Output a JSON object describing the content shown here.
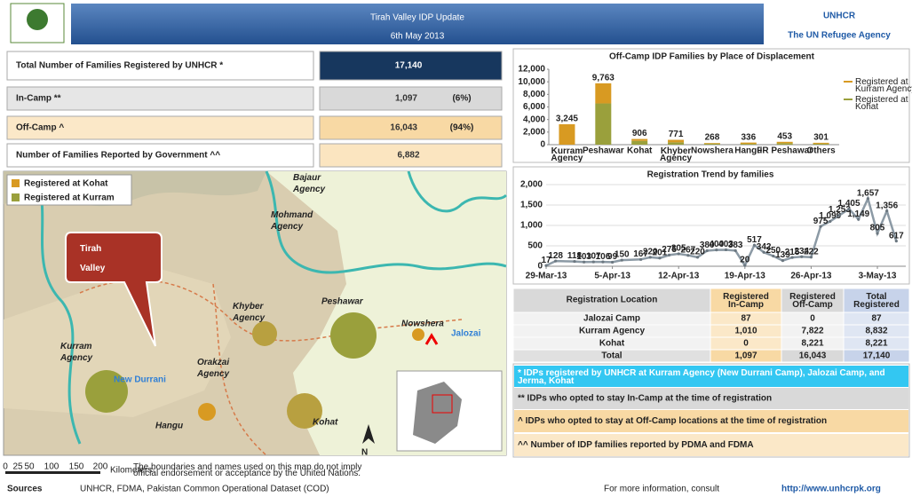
{
  "header": {
    "title": "Tirah Valley IDP Update",
    "date": "6th May 2013",
    "logo": "UNHCR",
    "logo_sub": "The UN Refugee Agency"
  },
  "stats": [
    {
      "label": "Total Number of Families Registered by UNHCR *",
      "value": "17,140"
    },
    {
      "label": "In-Camp **",
      "value": "1,097",
      "share": "(6%)"
    },
    {
      "label": "Off-Camp ^",
      "value": "16,043",
      "share": "(94%)"
    },
    {
      "label": "Number of Families Reported by Government ^^",
      "value": "6,882"
    }
  ],
  "map": {
    "legend": [
      "Registered at Kohat",
      "Registered at Kurram"
    ],
    "callout": "Tirah Valley",
    "labels": [
      "Bajaur Agency",
      "Mohmand Agency",
      "Khyber Agency",
      "Peshawar",
      "Nowshera",
      "Jalozai",
      "Kurram Agency",
      "Orakzai Agency",
      "New Durrani",
      "Hangu",
      "Kohat",
      "N"
    ]
  },
  "chart_data": [
    {
      "type": "bar",
      "title": "Off-Camp IDP Families by Place of Displacement",
      "categories": [
        "Kurram Agency",
        "Peshawar",
        "Kohat",
        "Khyber Agency",
        "Nowshera",
        "Hangu",
        "FR Peshawar",
        "Others"
      ],
      "series": [
        {
          "name": "Registered at Kohat",
          "color": "#9aa03c",
          "values": [
            0,
            6560,
            606,
            371,
            168,
            136,
            229,
            151
          ]
        },
        {
          "name": "Registered at Kurram Agency",
          "color": "#d89a22",
          "values": [
            3245,
            3203,
            300,
            400,
            100,
            200,
            224,
            150
          ]
        }
      ],
      "total_labels": [
        "3,245",
        "9,763",
        "906",
        "771",
        "268",
        "336",
        "453",
        "301"
      ],
      "stacked": true,
      "ylim": [
        0,
        12000
      ],
      "yticks": [
        0,
        {
          "value": 2000,
          "label": "2,000"
        },
        {
          "value": 4000,
          "label": "4,000"
        },
        {
          "value": 6000,
          "label": "6,000"
        },
        {
          "value": 8000,
          "label": "8,000"
        },
        {
          "value": 10000,
          "label": "10,000"
        },
        {
          "value": 12000,
          "label": "12,000"
        }
      ],
      "legend": "right"
    },
    {
      "type": "line",
      "title": "Registration Trend by families",
      "x": [
        "2013-03-29",
        "2013-03-30",
        "2013-04-01",
        "2013-04-02",
        "2013-04-03",
        "2013-04-04",
        "2013-04-05",
        "2013-04-06",
        "2013-04-08",
        "2013-04-09",
        "2013-04-10",
        "2013-04-11",
        "2013-04-12",
        "2013-04-13",
        "2013-04-14",
        "2013-04-15",
        "2013-04-16",
        "2013-04-17",
        "2013-04-18",
        "2013-04-19",
        "2013-04-20",
        "2013-04-21",
        "2013-04-22",
        "2013-04-23",
        "2013-04-24",
        "2013-04-25",
        "2013-04-26",
        "2013-04-27",
        "2013-04-28",
        "2013-04-29",
        "2013-04-30",
        "2013-05-01",
        "2013-05-02",
        "2013-05-03",
        "2013-05-04",
        "2013-05-05"
      ],
      "series": [
        {
          "name": "Registration",
          "color": "#8c9aa5",
          "values": [
            17,
            128,
            118,
            103,
            107,
            106,
            99,
            150,
            167,
            220,
            201,
            275,
            305,
            267,
            220,
            380,
            400,
            403,
            383,
            20,
            517,
            342,
            250,
            139,
            215,
            234,
            222,
            975,
            1099,
            1253,
            1405,
            1149,
            1657,
            805,
            1356,
            617
          ],
          "value_labels": [
            "17",
            "128",
            "118",
            "103",
            "107",
            "106",
            "99",
            "150",
            "167",
            "220",
            "201",
            "275",
            "305",
            "267",
            "220",
            "380",
            "400",
            "403",
            "383",
            "20",
            "517",
            "342",
            "250",
            "139",
            "215",
            "234",
            "222",
            "975",
            "1,099",
            "1,253",
            "1,405",
            "1,149",
            "1,657",
            "805",
            "1,356",
            "617"
          ]
        }
      ],
      "xlim": [
        "2013-03-29",
        "2013-05-06"
      ],
      "xticks": [
        {
          "value": "2013-03-29",
          "label": "29-Mar-13"
        },
        {
          "value": "2013-04-05",
          "label": "5-Apr-13"
        },
        {
          "value": "2013-04-12",
          "label": "12-Apr-13"
        },
        {
          "value": "2013-04-19",
          "label": "19-Apr-13"
        },
        {
          "value": "2013-04-26",
          "label": "26-Apr-13"
        },
        {
          "value": "2013-05-03",
          "label": "3-May-13"
        }
      ],
      "ylim": [
        0,
        2000
      ],
      "yticks": [
        0,
        500,
        {
          "value": 1000,
          "label": "1,000"
        },
        {
          "value": 1500,
          "label": "1,500"
        },
        {
          "value": 2000,
          "label": "2,000"
        }
      ],
      "grid": true
    }
  ],
  "table": {
    "header": [
      "Registration Location",
      "Registered In-Camp",
      "Registered Off-Camp",
      "Total Registered"
    ],
    "rows": [
      [
        "Jalozai Camp",
        "87",
        "0",
        "87"
      ],
      [
        "Kurram Agency",
        "1,010",
        "7,822",
        "8,832"
      ],
      [
        "Kohat",
        "0",
        "8,221",
        "8,221"
      ],
      [
        "Total",
        "1,097",
        "16,043",
        "17,140"
      ]
    ]
  },
  "notes": [
    "* IDPs registered by UNHCR at Kurram Agency (New Durrani Camp), Jalozai Camp, and Jerma, Kohat",
    "** IDPs who opted to stay In-Camp at the time of registration",
    "^ IDPs who opted to stay at Off-Camp locations at the time of registration",
    "^^ Number of IDP families reported by PDMA and FDMA"
  ],
  "footer": {
    "scale": [
      "0",
      "25",
      "50",
      "100",
      "150",
      "200"
    ],
    "scale_unit": "Kilometers",
    "disclaimer": "The boundaries and names used on this map do not imply official endorsement or acceptance by the United Nations.",
    "sources_label": "Sources",
    "sources": "UNHCR, FDMA, Pakistan Common Operational Dataset (COD)",
    "info": "For more information, consult",
    "url": "http://www.unhcrpk.org"
  }
}
